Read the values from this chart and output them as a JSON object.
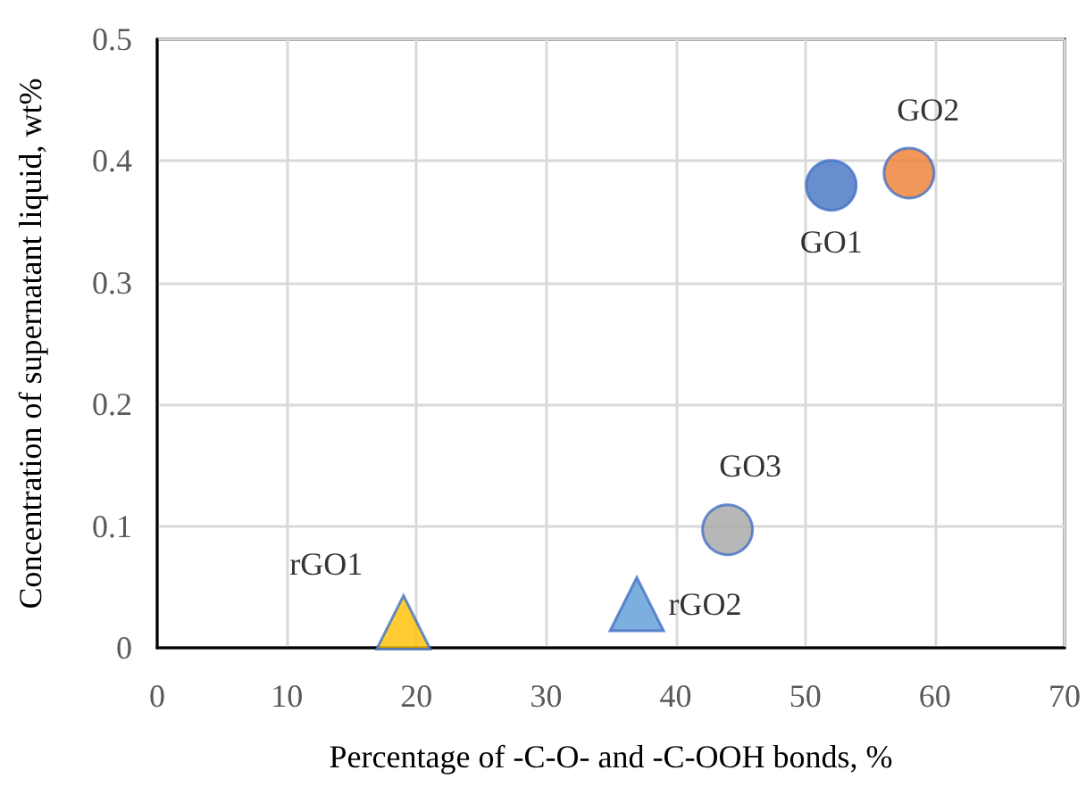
{
  "chart_data": {
    "type": "scatter",
    "xlabel": "Percentage of -C-O- and -C-OOH bonds, %",
    "ylabel": "Concentration of supernatant liquid, wt%",
    "series": [
      {
        "name": "GO1",
        "color": "#4472c4",
        "marker": "circle",
        "x": [
          52
        ],
        "values": [
          0.38
        ]
      },
      {
        "name": "GO2",
        "color": "#ed7d31",
        "marker": "circle",
        "x": [
          58
        ],
        "values": [
          0.39
        ]
      },
      {
        "name": "GO3",
        "color": "#a5a5a5",
        "marker": "circle",
        "x": [
          44
        ],
        "values": [
          0.097
        ]
      },
      {
        "name": "rGO1",
        "color": "#ffc000",
        "marker": "triangle",
        "x": [
          19
        ],
        "values": [
          0.015
        ]
      },
      {
        "name": "rGO2",
        "color": "#5b9bd5",
        "marker": "triangle",
        "x": [
          37
        ],
        "values": [
          0.03
        ]
      }
    ],
    "xlim": [
      0,
      70
    ],
    "xticks": [
      0,
      10,
      20,
      30,
      40,
      50,
      60,
      70
    ],
    "ylim": [
      0,
      0.5
    ],
    "yticks": [
      0,
      0.1,
      0.2,
      0.3,
      0.4,
      0.5
    ],
    "grid": true,
    "legend": false
  }
}
